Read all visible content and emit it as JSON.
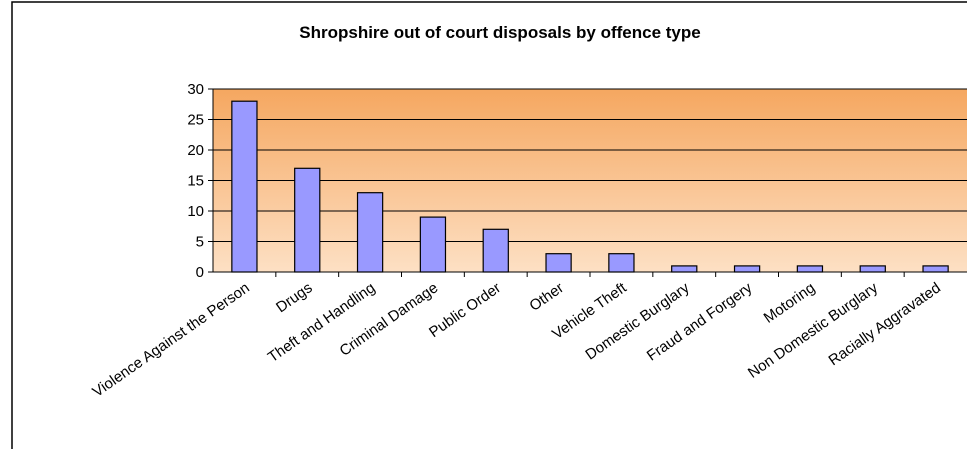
{
  "chart_data": {
    "type": "bar",
    "title": "Shropshire out of court disposals by offence type",
    "categories": [
      "Violence Against the Person",
      "Drugs",
      "Theft and Handling",
      "Criminal Damage",
      "Public Order",
      "Other",
      "Vehicle Theft",
      "Domestic Burglary",
      "Fraud and Forgery",
      "Motoring",
      "Non Domestic Burglary",
      "Racially Aggravated"
    ],
    "values": [
      28,
      17,
      13,
      9,
      7,
      3,
      3,
      1,
      1,
      1,
      1,
      1
    ],
    "color": "#9999ff",
    "ylim": [
      0,
      30
    ],
    "yticks": [
      0,
      5,
      10,
      15,
      20,
      25,
      30
    ],
    "grid": true
  }
}
